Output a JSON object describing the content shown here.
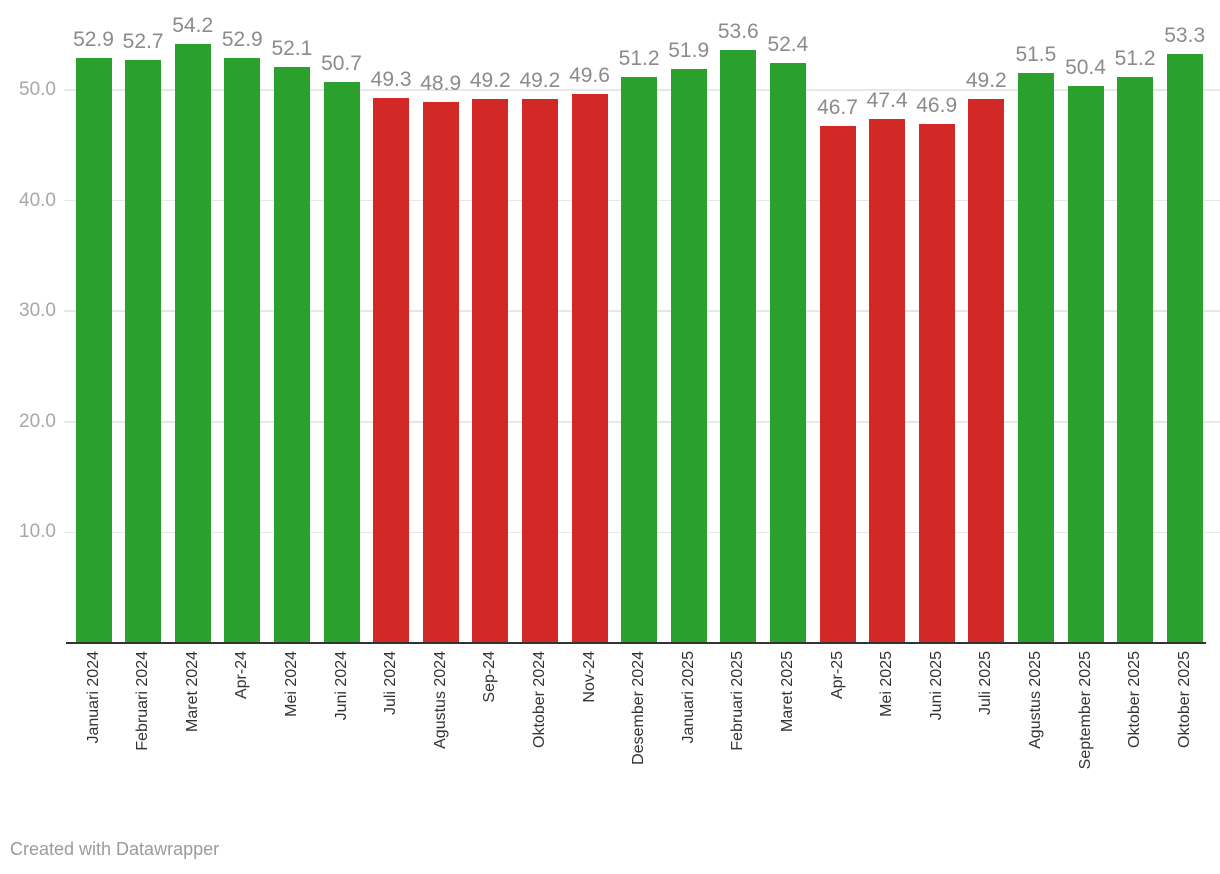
{
  "chart_data": {
    "type": "bar",
    "title": "",
    "xlabel": "",
    "ylabel": "",
    "categories": [
      "Januari 2024",
      "Februari 2024",
      "Maret 2024",
      "Apr-24",
      "Mei 2024",
      "Juni 2024",
      "Juli 2024",
      "Agustus 2024",
      "Sep-24",
      "Oktober 2024",
      "Nov-24",
      "Desember 2024",
      "Januari 2025",
      "Februari 2025",
      "Maret 2025",
      "Apr-25",
      "Mei 2025",
      "Juni 2025",
      "Juli 2025",
      "Agustus 2025",
      "September 2025",
      "Oktober 2025",
      "Oktober 2025"
    ],
    "values": [
      52.9,
      52.7,
      54.2,
      52.9,
      52.1,
      50.7,
      49.3,
      48.9,
      49.2,
      49.2,
      49.6,
      51.2,
      51.9,
      53.6,
      52.4,
      46.7,
      47.4,
      46.9,
      49.2,
      51.5,
      50.4,
      51.2,
      53.3
    ],
    "value_labels": [
      "52.9",
      "52.7",
      "54.2",
      "52.9",
      "52.1",
      "50.7",
      "49.3",
      "48.9",
      "49.2",
      "49.2",
      "49.6",
      "51.2",
      "51.9",
      "53.6",
      "52.4",
      "46.7",
      "47.4",
      "46.9",
      "49.2",
      "51.5",
      "50.4",
      "51.2",
      "53.3"
    ],
    "y_ticks": [
      {
        "value": 10,
        "label": "10.0"
      },
      {
        "value": 20,
        "label": "20.0"
      },
      {
        "value": 30,
        "label": "30.0"
      },
      {
        "value": 40,
        "label": "40.0"
      },
      {
        "value": 50,
        "label": "50.0"
      }
    ],
    "ylim": [
      0,
      58
    ],
    "grid": true,
    "legend": "none",
    "x_labels_rotated_90": true,
    "color_threshold": 50,
    "colors": {
      "above_threshold": "#2aa12d",
      "below_threshold": "#d22926",
      "gridline": "#e7e7e7",
      "axis_line": "#333333",
      "value_label_text": "#8b8b8b",
      "y_tick_text": "#a8a8a8",
      "x_tick_text": "#333333"
    }
  },
  "footer": {
    "attribution": "Created with Datawrapper"
  }
}
